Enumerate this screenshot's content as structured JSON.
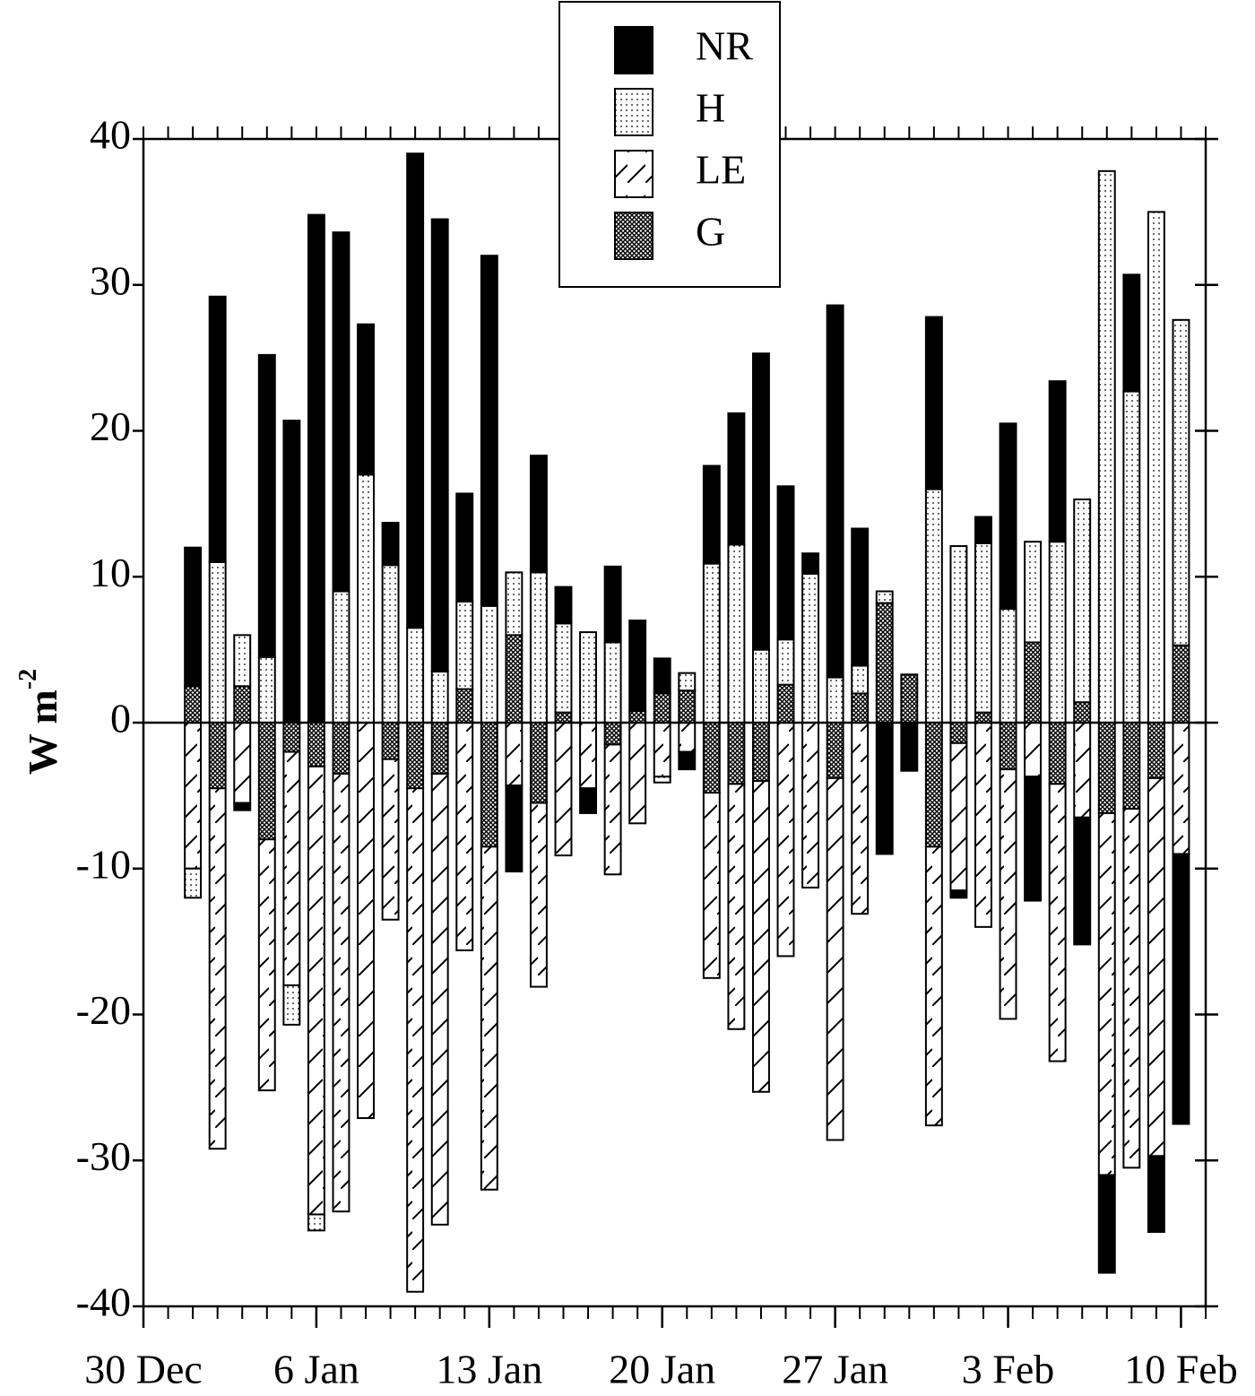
{
  "chart_data": {
    "type": "bar",
    "stacked": true,
    "ylabel": "W m",
    "ylabel_sup": "-2",
    "x": [
      2,
      3,
      4,
      5,
      6,
      7,
      8,
      9,
      10,
      11,
      12,
      13,
      14,
      15,
      16,
      17,
      18,
      19,
      20,
      21,
      22,
      23,
      24,
      25,
      26,
      27,
      28,
      29,
      30,
      31,
      32,
      33,
      34,
      35,
      36,
      37,
      38,
      39,
      40,
      41,
      42
    ],
    "xlim": [
      0,
      43
    ],
    "xticks": [
      {
        "value": 0,
        "label": "30 Dec"
      },
      {
        "value": 7,
        "label": "6 Jan"
      },
      {
        "value": 14,
        "label": "13 Jan"
      },
      {
        "value": 21,
        "label": "20 Jan"
      },
      {
        "value": 28,
        "label": "27 Jan"
      },
      {
        "value": 35,
        "label": "3 Feb"
      },
      {
        "value": 42,
        "label": "10 Feb"
      }
    ],
    "ylim": [
      -40,
      40
    ],
    "yticks": [
      40,
      30,
      20,
      10,
      0,
      -10,
      -20,
      -30,
      -40
    ],
    "legend": "top-center",
    "series": [
      {
        "name": "NR",
        "color": "#000000",
        "pattern": "solid",
        "values": [
          9.5,
          18.2,
          -0.5,
          20.7,
          20.7,
          34.8,
          24.6,
          10.3,
          2.9,
          32.5,
          31,
          7.4,
          24,
          -5.9,
          8,
          2.5,
          -1.7,
          5.2,
          6.2,
          2.4,
          -1.2,
          6.7,
          9,
          20.3,
          10.5,
          1.4,
          25.5,
          9.4,
          -9,
          -3.3,
          11.8,
          -0.5,
          1.8,
          12.7,
          -8.5,
          11,
          -8.7,
          -6.7,
          8,
          -5.2,
          -18.5
        ]
      },
      {
        "name": "H",
        "color": "#000000",
        "pattern": "dots",
        "values": [
          -2,
          11,
          3.5,
          4.5,
          -2.7,
          -1.1,
          9,
          17,
          10.8,
          6.5,
          3.5,
          6,
          8,
          4.3,
          10.3,
          6.1,
          6.2,
          5.5,
          0,
          -0.4,
          1.2,
          10.9,
          12.2,
          5,
          3.1,
          10.2,
          3.1,
          1.9,
          0.8,
          0,
          16,
          12.1,
          11.6,
          7.8,
          6.9,
          12.4,
          13.9,
          37.8,
          22.7,
          35,
          22.3
        ]
      },
      {
        "name": "LE",
        "color": "#000000",
        "pattern": "hatch",
        "values": [
          -10,
          -24.7,
          -5.5,
          -17.2,
          -16,
          -30.7,
          -30,
          -27.1,
          -11,
          -34.5,
          -30.9,
          -15.6,
          -23.5,
          -4.3,
          -12.6,
          -9.1,
          -4.5,
          -8.9,
          -6.9,
          -3.7,
          -2,
          -12.7,
          -16.8,
          -21.3,
          -16,
          -11.3,
          -24.8,
          -13.1,
          0,
          0,
          -19.1,
          -10.1,
          -14,
          -17.1,
          -3.7,
          -19,
          -6.5,
          -24.8,
          -24.6,
          -25.9,
          -9
        ]
      },
      {
        "name": "G",
        "color": "#000000",
        "pattern": "crosshatch",
        "values": [
          2.5,
          -4.5,
          2.5,
          -8,
          -2,
          -3,
          -3.5,
          0,
          -2.5,
          -4.5,
          -3.5,
          2.3,
          -8.5,
          6,
          -5.5,
          0.7,
          0,
          -1.5,
          0.8,
          2,
          2.2,
          -4.8,
          -4.2,
          -4,
          2.6,
          0,
          -3.8,
          2,
          8.2,
          3.3,
          -8.5,
          -1.4,
          0.7,
          -3.2,
          5.5,
          -4.2,
          1.4,
          -6.2,
          -5.9,
          -3.8,
          5.3
        ]
      }
    ]
  }
}
